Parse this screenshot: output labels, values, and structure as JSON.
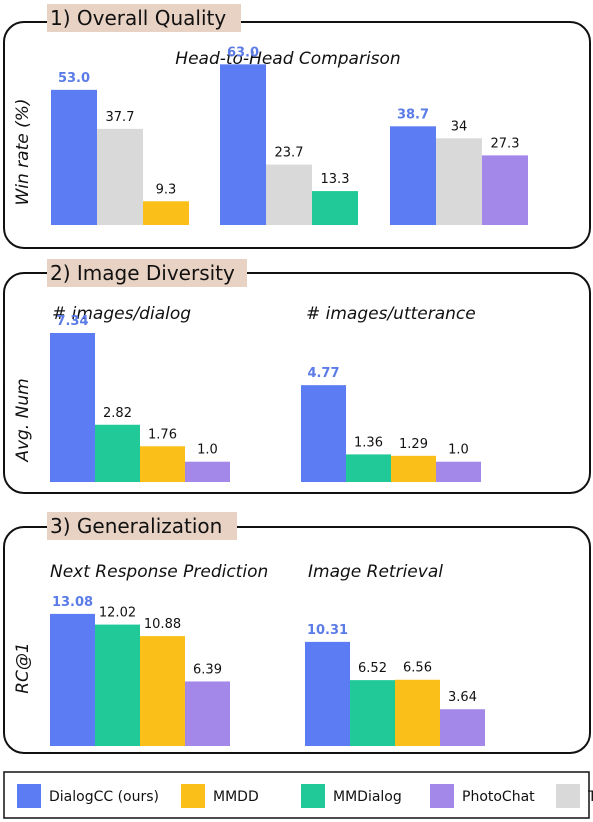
{
  "colors": {
    "DialogCC (ours)": "#5b7cf2",
    "MMDD": "#fbbf1a",
    "MMDialog": "#20c997",
    "PhotoChat": "#a387e9",
    "Tie": "#d9d9d9",
    "highlight_label": "#5b7be6",
    "title_bg": "#e8d2c3"
  },
  "legend": [
    "DialogCC (ours)",
    "MMDD",
    "MMDialog",
    "PhotoChat",
    "Tie"
  ],
  "panels": [
    {
      "title": "1) Overall Quality",
      "ylabel": "Win rate (%)"
    },
    {
      "title": "2) Image Diversity",
      "ylabel": "Avg. Num"
    },
    {
      "title": "3) Generalization",
      "ylabel": "RC@1"
    }
  ],
  "chart_data": [
    {
      "type": "bar",
      "title": "Head-to-Head Comparison",
      "ylabel": "Win rate (%)",
      "groups": [
        {
          "bars": [
            {
              "series": "DialogCC (ours)",
              "value": 53.0,
              "label": "53.0"
            },
            {
              "series": "Tie",
              "value": 37.7,
              "label": "37.7"
            },
            {
              "series": "MMDD",
              "value": 9.3,
              "label": "9.3"
            }
          ]
        },
        {
          "bars": [
            {
              "series": "DialogCC (ours)",
              "value": 63.0,
              "label": "63.0"
            },
            {
              "series": "Tie",
              "value": 23.7,
              "label": "23.7"
            },
            {
              "series": "MMDialog",
              "value": 13.3,
              "label": "13.3"
            }
          ]
        },
        {
          "bars": [
            {
              "series": "DialogCC (ours)",
              "value": 38.7,
              "label": "38.7"
            },
            {
              "series": "Tie",
              "value": 34,
              "label": "34"
            },
            {
              "series": "PhotoChat",
              "value": 27.3,
              "label": "27.3"
            }
          ]
        }
      ]
    },
    {
      "type": "bar",
      "ylabel": "Avg. Num",
      "groups": [
        {
          "title": "# images/dialog",
          "bars": [
            {
              "series": "DialogCC (ours)",
              "value": 7.34,
              "label": "7.34"
            },
            {
              "series": "MMDialog",
              "value": 2.82,
              "label": "2.82"
            },
            {
              "series": "MMDD",
              "value": 1.76,
              "label": "1.76"
            },
            {
              "series": "PhotoChat",
              "value": 1.0,
              "label": "1.0"
            }
          ]
        },
        {
          "title": "# images/utterance",
          "bars": [
            {
              "series": "DialogCC (ours)",
              "value": 4.77,
              "label": "4.77"
            },
            {
              "series": "MMDialog",
              "value": 1.36,
              "label": "1.36"
            },
            {
              "series": "MMDD",
              "value": 1.29,
              "label": "1.29"
            },
            {
              "series": "PhotoChat",
              "value": 1.0,
              "label": "1.0"
            }
          ]
        }
      ]
    },
    {
      "type": "bar",
      "ylabel": "RC@1",
      "groups": [
        {
          "title": "Next Response Prediction",
          "bars": [
            {
              "series": "DialogCC (ours)",
              "value": 13.08,
              "label": "13.08"
            },
            {
              "series": "MMDialog",
              "value": 12.02,
              "label": "12.02"
            },
            {
              "series": "MMDD",
              "value": 10.88,
              "label": "10.88"
            },
            {
              "series": "PhotoChat",
              "value": 6.39,
              "label": "6.39"
            }
          ]
        },
        {
          "title": "Image Retrieval",
          "bars": [
            {
              "series": "DialogCC (ours)",
              "value": 10.31,
              "label": "10.31"
            },
            {
              "series": "MMDialog",
              "value": 6.52,
              "label": "6.52"
            },
            {
              "series": "MMDD",
              "value": 6.56,
              "label": "6.56"
            },
            {
              "series": "PhotoChat",
              "value": 3.64,
              "label": "3.64"
            }
          ]
        }
      ]
    }
  ]
}
